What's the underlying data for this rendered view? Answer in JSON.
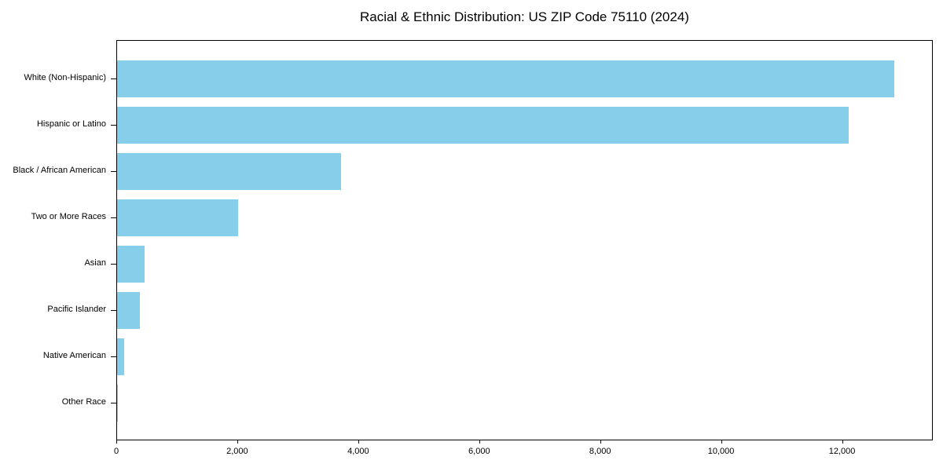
{
  "title": "Racial & Ethnic Distribution: US ZIP Code 75110 (2024)",
  "colors": {
    "bar": "#87CEEB",
    "axis": "#000000",
    "text": "#000000",
    "background": "#FFFFFF"
  },
  "chart_data": {
    "type": "bar",
    "orientation": "horizontal",
    "title": "Racial & Ethnic Distribution: US ZIP Code 75110 (2024)",
    "categories": [
      "White (Non-Hispanic)",
      "Hispanic or Latino",
      "Black / African American",
      "Two or More Races",
      "Asian",
      "Pacific Islander",
      "Native American",
      "Other Race"
    ],
    "values": [
      12850,
      12100,
      3700,
      2000,
      460,
      370,
      110,
      10
    ],
    "xlabel": "",
    "ylabel": "",
    "xlim": [
      0,
      13500
    ],
    "xticks": [
      0,
      2000,
      4000,
      6000,
      8000,
      10000,
      12000
    ],
    "xtick_labels": [
      "0",
      "2,000",
      "4,000",
      "6,000",
      "8,000",
      "10,000",
      "12,000"
    ],
    "bar_color": "#87CEEB",
    "grid": false,
    "legend": null
  }
}
